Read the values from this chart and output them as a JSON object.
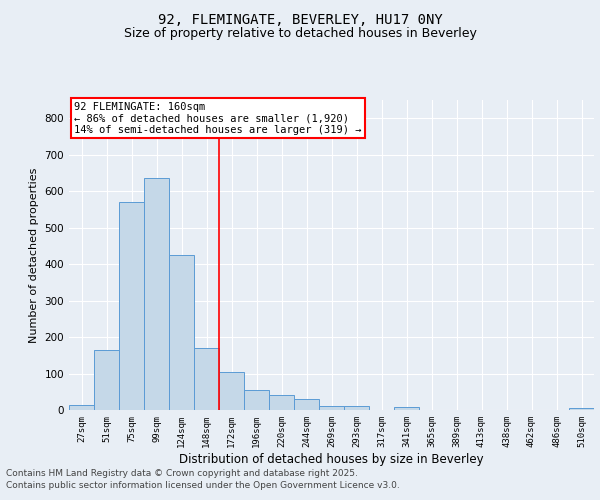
{
  "title": "92, FLEMINGATE, BEVERLEY, HU17 0NY",
  "subtitle": "Size of property relative to detached houses in Beverley",
  "xlabel": "Distribution of detached houses by size in Beverley",
  "ylabel": "Number of detached properties",
  "categories": [
    "27sqm",
    "51sqm",
    "75sqm",
    "99sqm",
    "124sqm",
    "148sqm",
    "172sqm",
    "196sqm",
    "220sqm",
    "244sqm",
    "269sqm",
    "293sqm",
    "317sqm",
    "341sqm",
    "365sqm",
    "389sqm",
    "413sqm",
    "438sqm",
    "462sqm",
    "486sqm",
    "510sqm"
  ],
  "values": [
    15,
    165,
    570,
    635,
    425,
    170,
    105,
    55,
    40,
    30,
    12,
    10,
    0,
    7,
    0,
    0,
    0,
    0,
    0,
    0,
    6
  ],
  "bar_color": "#c5d8e8",
  "bar_edge_color": "#5b9bd5",
  "ylim": [
    0,
    850
  ],
  "yticks": [
    0,
    100,
    200,
    300,
    400,
    500,
    600,
    700,
    800
  ],
  "red_line_x": 5.5,
  "annotation_title": "92 FLEMINGATE: 160sqm",
  "annotation_line1": "← 86% of detached houses are smaller (1,920)",
  "annotation_line2": "14% of semi-detached houses are larger (319) →",
  "background_color": "#e8eef5",
  "grid_color": "#ffffff",
  "title_fontsize": 10,
  "subtitle_fontsize": 9,
  "footnote1": "Contains HM Land Registry data © Crown copyright and database right 2025.",
  "footnote2": "Contains public sector information licensed under the Open Government Licence v3.0."
}
